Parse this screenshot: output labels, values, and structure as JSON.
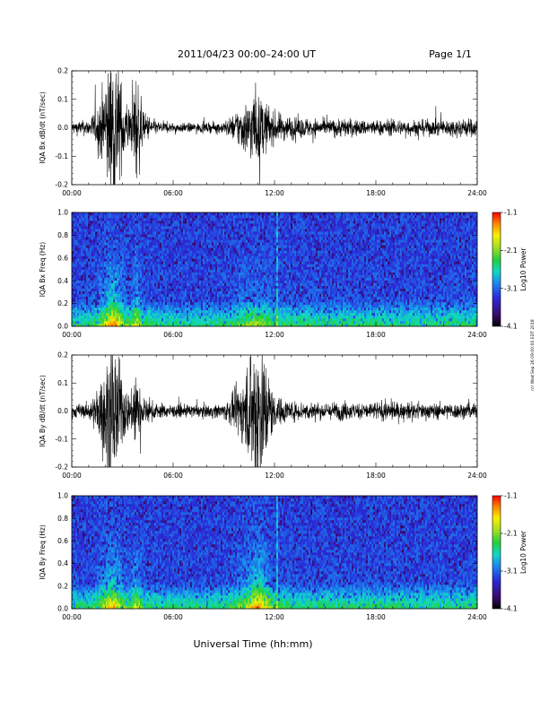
{
  "header": {
    "title": "2011/04/23  00:00–24:00 UT",
    "page": "Page 1/1"
  },
  "footer": {
    "xlabel": "Universal Time (hh:mm)"
  },
  "side_stamp": "rcr Wed Sep 26 09:00:00 EDT 2018",
  "chart_data": [
    {
      "type": "line",
      "id": "bx_waveform",
      "ylabel": "IQA Bx dB/dt (nT/sec)",
      "xlim": [
        0,
        24
      ],
      "ylim": [
        -0.2,
        0.2
      ],
      "yticks": [
        "-0.2",
        "-0.1",
        "0.0",
        "0.1",
        "0.2"
      ],
      "xticks": [
        "00:00",
        "06:00",
        "12:00",
        "18:00",
        "24:00"
      ],
      "envelope": {
        "x_hours": [
          0,
          1,
          1.5,
          2,
          2.3,
          2.6,
          3.0,
          3.5,
          3.8,
          4.2,
          5,
          6,
          7,
          8,
          9,
          9.5,
          10,
          10.5,
          10.8,
          11.2,
          11.6,
          12,
          13,
          14,
          15,
          16,
          17,
          18,
          19,
          20,
          21,
          22,
          23,
          24
        ],
        "amplitude": [
          0.02,
          0.025,
          0.06,
          0.16,
          0.25,
          0.25,
          0.12,
          0.05,
          0.2,
          0.05,
          0.02,
          0.015,
          0.015,
          0.015,
          0.02,
          0.035,
          0.07,
          0.09,
          0.12,
          0.1,
          0.07,
          0.05,
          0.035,
          0.03,
          0.025,
          0.03,
          0.025,
          0.025,
          0.025,
          0.025,
          0.025,
          0.025,
          0.03,
          0.03
        ]
      }
    },
    {
      "type": "heatmap",
      "id": "bx_spectrogram",
      "ylabel": "IQA Bx Freq (Hz)",
      "xlim": [
        0,
        24
      ],
      "ylim": [
        0,
        1.0
      ],
      "yticks": [
        "0.0",
        "0.2",
        "0.4",
        "0.6",
        "0.8",
        "1.0"
      ],
      "xticks": [
        "00:00",
        "06:00",
        "12:00",
        "18:00",
        "24:00"
      ],
      "colorbar": {
        "label": "Log10 Power",
        "ticks": [
          "-1.1",
          "-2.1",
          "-3.1",
          "-4.1"
        ],
        "range": [
          -4.1,
          -1.1
        ]
      }
    },
    {
      "type": "line",
      "id": "by_waveform",
      "ylabel": "IQA By dB/dt (nT/sec)",
      "xlim": [
        0,
        24
      ],
      "ylim": [
        -0.2,
        0.2
      ],
      "yticks": [
        "-0.2",
        "-0.1",
        "0.0",
        "0.1",
        "0.2"
      ],
      "xticks": [
        "00:00",
        "06:00",
        "12:00",
        "18:00",
        "24:00"
      ],
      "envelope": {
        "x_hours": [
          0,
          1,
          1.5,
          2,
          2.3,
          2.6,
          3.0,
          3.5,
          3.8,
          4.2,
          5,
          6,
          7,
          8,
          9,
          9.5,
          10,
          10.5,
          10.8,
          11.2,
          11.6,
          12,
          13,
          14,
          15,
          16,
          17,
          18,
          19,
          20,
          21,
          22,
          23,
          24
        ],
        "amplitude": [
          0.02,
          0.025,
          0.07,
          0.15,
          0.22,
          0.22,
          0.1,
          0.05,
          0.18,
          0.04,
          0.025,
          0.02,
          0.02,
          0.02,
          0.025,
          0.05,
          0.09,
          0.16,
          0.25,
          0.25,
          0.14,
          0.05,
          0.03,
          0.03,
          0.025,
          0.03,
          0.025,
          0.03,
          0.03,
          0.025,
          0.025,
          0.025,
          0.025,
          0.025
        ]
      }
    },
    {
      "type": "heatmap",
      "id": "by_spectrogram",
      "ylabel": "IQA By Freq (Hz)",
      "xlim": [
        0,
        24
      ],
      "ylim": [
        0,
        1.0
      ],
      "yticks": [
        "0.0",
        "0.2",
        "0.4",
        "0.6",
        "0.8",
        "1.0"
      ],
      "xticks": [
        "00:00",
        "06:00",
        "12:00",
        "18:00",
        "24:00"
      ],
      "colorbar": {
        "label": "Log10 Power",
        "ticks": [
          "-1.1",
          "-2.1",
          "-3.1",
          "-4.1"
        ],
        "range": [
          -4.1,
          -1.1
        ]
      }
    }
  ]
}
